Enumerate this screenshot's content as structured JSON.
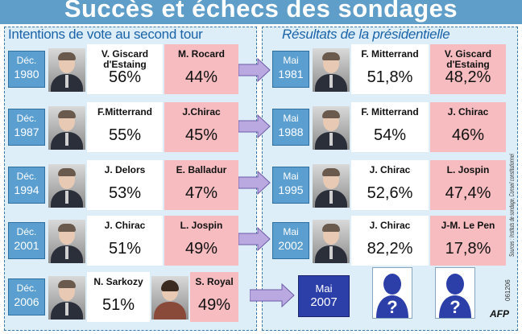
{
  "title": "Succès et échecs des sondages",
  "left_heading": "Intentions de vote au second tour",
  "right_heading": "Résultats de la présidentielle",
  "polls": [
    {
      "month": "Déc.",
      "year": "1980",
      "c1": "V. Giscard d'Estaing",
      "p1": "56%",
      "c2": "M. Rocard",
      "p2": "44%"
    },
    {
      "month": "Déc.",
      "year": "1987",
      "c1": "F.Mitterrand",
      "p1": "55%",
      "c2": "J.Chirac",
      "p2": "45%"
    },
    {
      "month": "Déc.",
      "year": "1994",
      "c1": "J. Delors",
      "p1": "53%",
      "c2": "E. Balladur",
      "p2": "47%"
    },
    {
      "month": "Déc.",
      "year": "2001",
      "c1": "J. Chirac",
      "p1": "51%",
      "c2": "L. Jospin",
      "p2": "49%"
    },
    {
      "month": "Déc.",
      "year": "2006",
      "c1": "N. Sarkozy",
      "p1": "51%",
      "c2": "S. Royal",
      "p2": "49%"
    }
  ],
  "results": [
    {
      "month": "Mai",
      "year": "1981",
      "c1": "F. Mitterrand",
      "p1": "51,8%",
      "c2": "V. Giscard d'Estaing",
      "p2": "48,2%"
    },
    {
      "month": "Mai",
      "year": "1988",
      "c1": "F. Mitterrand",
      "p1": "54%",
      "c2": "J. Chirac",
      "p2": "46%"
    },
    {
      "month": "Mai",
      "year": "1995",
      "c1": "J. Chirac",
      "p1": "52,6%",
      "c2": "L. Jospin",
      "p2": "47,4%"
    },
    {
      "month": "Mai",
      "year": "2002",
      "c1": "J. Chirac",
      "p1": "82,2%",
      "c2": "J-M. Le Pen",
      "p2": "17,8%"
    }
  ],
  "next": {
    "month": "Mai",
    "year": "2007",
    "unknown": "?"
  },
  "source": "Sources : Instituts de sondage, Conseil constitutionnel",
  "credit": "AFP",
  "code": "061206",
  "colors": {
    "title_bg": "#5f9ec9",
    "panel_bg": "#ddeef8",
    "date_bg": "#5b9fd0",
    "loser_bg": "#f6bcc0",
    "arrow": "#b9a9e0",
    "future_bg": "#2c3ea8"
  }
}
